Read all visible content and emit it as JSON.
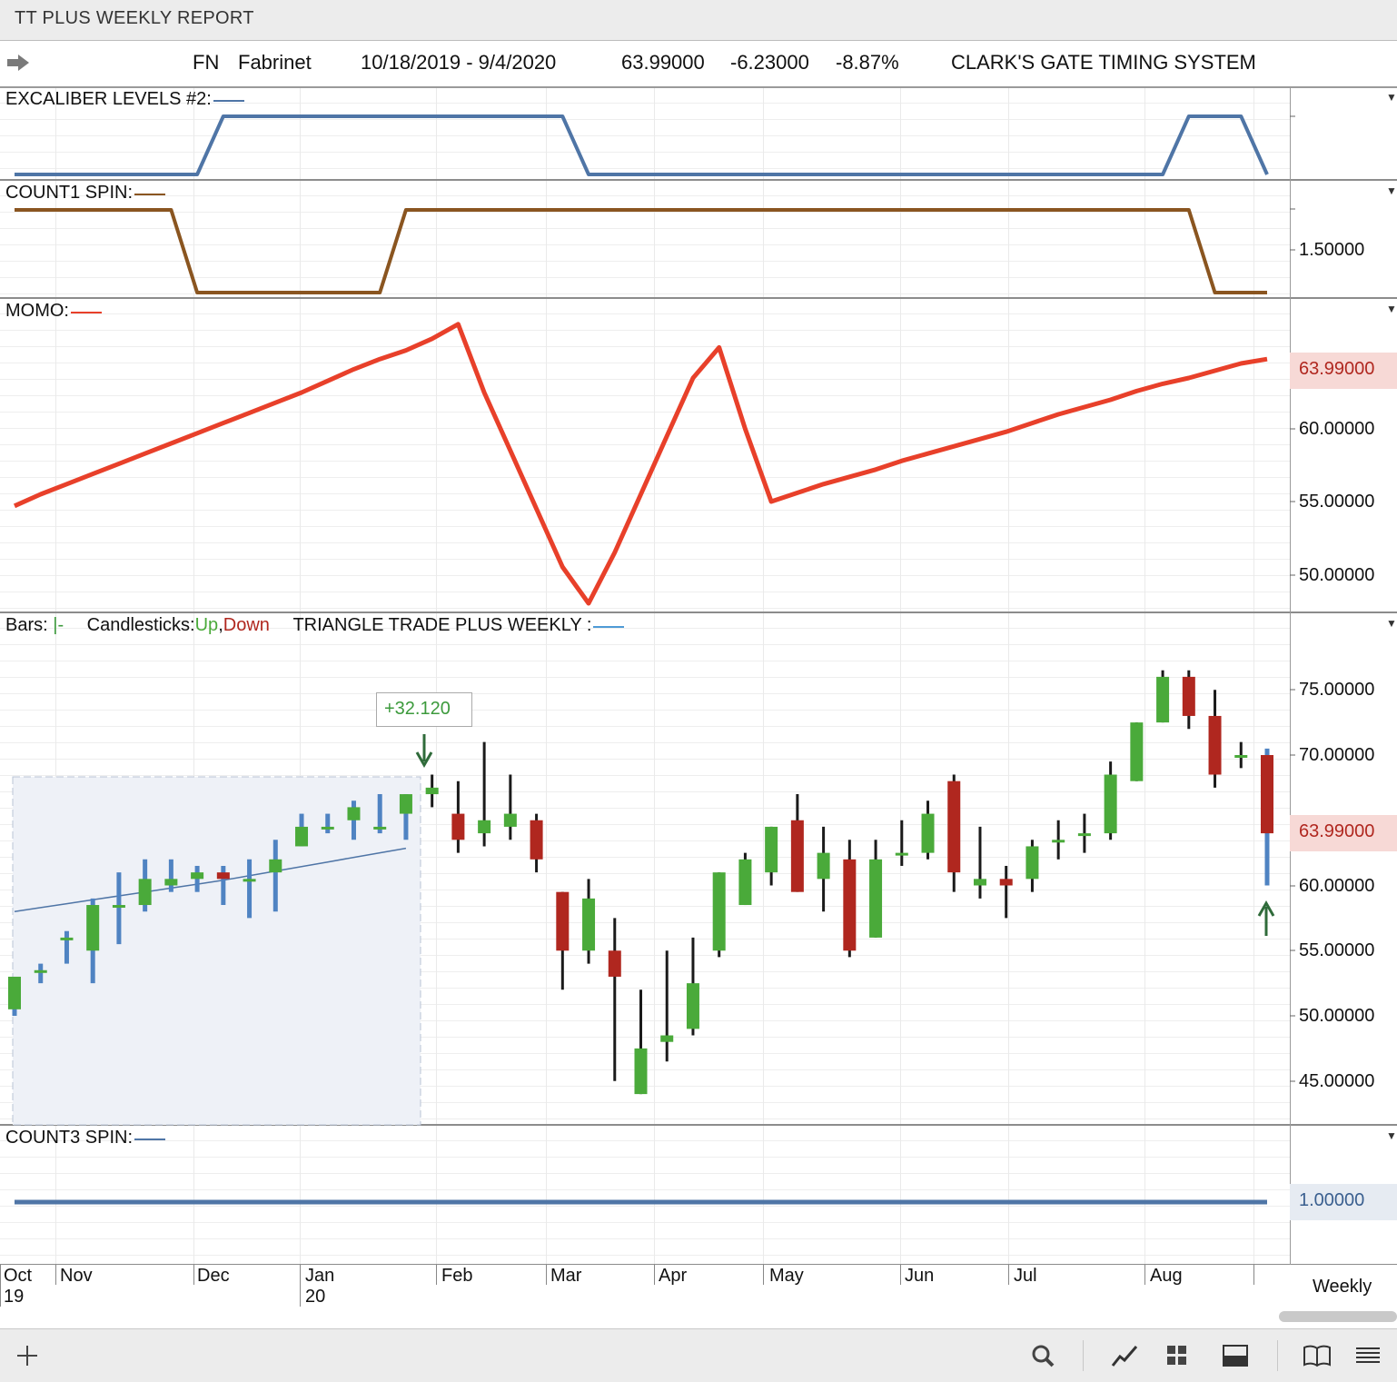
{
  "window": {
    "title": "TT PLUS WEEKLY REPORT"
  },
  "info": {
    "symbol": "FN",
    "name": "Fabrinet",
    "range": "10/18/2019 - 9/4/2020",
    "last": "63.99000",
    "change": "-6.23000",
    "pct": "-8.87%",
    "system": "CLARK'S GATE TIMING SYSTEM"
  },
  "panels": {
    "excaliber": {
      "label": "EXCALIBER LEVELS #2:",
      "color": "#4f75a6"
    },
    "count1": {
      "label": "COUNT1 SPIN:",
      "color": "#8a5520",
      "axis": "1.50000"
    },
    "momo": {
      "label": "MOMO:",
      "color": "#e8402a",
      "axis": [
        "63.99000",
        "60.00000",
        "55.00000",
        "50.00000"
      ]
    },
    "price": {
      "bars_label": "Bars:",
      "bars_sym": "|-",
      "candles_label": "Candlesticks:",
      "up": "Up",
      "comma": ",",
      "down": "Down",
      "study": "TRIANGLE TRADE PLUS WEEKLY :",
      "axis": [
        "75.00000",
        "70.00000",
        "63.99000",
        "60.00000",
        "55.00000",
        "50.00000",
        "45.00000"
      ],
      "annotation": "+32.120",
      "up_color": "#4aaa3a",
      "down_color": "#b0271f"
    },
    "count3": {
      "label": "COUNT3 SPIN:",
      "color": "#4f75a6",
      "axis": "1.00000"
    }
  },
  "dates": {
    "months": [
      "Oct",
      "Nov",
      "Dec",
      "Jan",
      "Feb",
      "Mar",
      "Apr",
      "May",
      "Jun",
      "Jul",
      "Aug"
    ],
    "years": [
      "19",
      "20"
    ],
    "interval": "Weekly"
  },
  "toolbar": {
    "icons": [
      "plus-icon",
      "search-icon",
      "line-chart-icon",
      "grid-icon",
      "panel-icon",
      "book-icon",
      "menu-icon"
    ]
  },
  "chart_data": [
    {
      "type": "line",
      "title": "EXCALIBER LEVELS #2",
      "series": [
        {
          "values": [
            0,
            0,
            0,
            0,
            0,
            0,
            0,
            0,
            1,
            1,
            1,
            1,
            1,
            1,
            1,
            1,
            1,
            1,
            1,
            1,
            1,
            1,
            0,
            0,
            0,
            0,
            0,
            0,
            0,
            0,
            0,
            0,
            0,
            0,
            0,
            0,
            0,
            0,
            0,
            0,
            0,
            0,
            0,
            0,
            0,
            1,
            1,
            1,
            0
          ]
        }
      ]
    },
    {
      "type": "line",
      "title": "COUNT1 SPIN",
      "series": [
        {
          "values": [
            2,
            2,
            2,
            2,
            2,
            2,
            2,
            1,
            1,
            1,
            1,
            1,
            1,
            1,
            1,
            2,
            2,
            2,
            2,
            2,
            2,
            2,
            2,
            2,
            2,
            2,
            2,
            2,
            2,
            2,
            2,
            2,
            2,
            2,
            2,
            2,
            2,
            2,
            2,
            2,
            2,
            2,
            2,
            2,
            2,
            2,
            1,
            1,
            1
          ]
        }
      ]
    },
    {
      "type": "line",
      "title": "MOMO",
      "series": [
        {
          "values": [
            54.7,
            55.5,
            56.2,
            56.9,
            57.6,
            58.3,
            59.0,
            59.7,
            60.4,
            61.1,
            61.8,
            62.5,
            63.3,
            64.1,
            64.8,
            65.4,
            66.2,
            67.2,
            62.5,
            58.5,
            54.5,
            50.5,
            48.0,
            51.5,
            55.5,
            59.5,
            63.5,
            65.6,
            60.0,
            55.0,
            55.6,
            56.2,
            56.7,
            57.2,
            57.8,
            58.3,
            58.8,
            59.3,
            59.8,
            60.4,
            61.0,
            61.5,
            62.0,
            62.6,
            63.1,
            63.5,
            64.0,
            64.5,
            64.8
          ]
        }
      ]
    },
    {
      "type": "bar",
      "title": "TRIANGLE TRADE PLUS WEEKLY",
      "series": [
        {
          "name": "Candlesticks",
          "ohlc": [
            [
              50.5,
              53.0,
              50.0,
              53.0
            ],
            [
              53.5,
              54.0,
              52.5,
              53.5
            ],
            [
              56.0,
              56.5,
              54.0,
              56.0
            ],
            [
              55.0,
              59.0,
              52.5,
              58.5
            ],
            [
              58.5,
              61.0,
              55.5,
              58.5
            ],
            [
              58.5,
              62.0,
              58.0,
              60.5
            ],
            [
              60.0,
              62.0,
              59.5,
              60.5
            ],
            [
              60.5,
              61.5,
              59.5,
              61.0
            ],
            [
              61.0,
              61.5,
              58.5,
              60.5
            ],
            [
              60.5,
              62.0,
              57.5,
              60.5
            ],
            [
              61.0,
              63.5,
              58.0,
              62.0
            ],
            [
              63.0,
              65.5,
              63.0,
              64.5
            ],
            [
              64.5,
              65.5,
              64.0,
              64.5
            ],
            [
              65.0,
              66.5,
              63.5,
              66.0
            ],
            [
              64.5,
              67.0,
              64.0,
              64.5
            ],
            [
              65.5,
              67.0,
              63.5,
              67.0
            ],
            [
              67.0,
              68.5,
              66.0,
              67.5
            ],
            [
              65.5,
              68.0,
              62.5,
              63.5
            ],
            [
              64.0,
              71.0,
              63.0,
              65.0
            ],
            [
              64.5,
              68.5,
              63.5,
              65.5
            ],
            [
              65.0,
              65.5,
              61.0,
              62.0
            ],
            [
              59.5,
              59.5,
              52.0,
              55.0
            ],
            [
              55.0,
              60.5,
              54.0,
              59.0
            ],
            [
              55.0,
              57.5,
              45.0,
              53.0
            ],
            [
              44.0,
              52.0,
              44.0,
              47.5
            ],
            [
              48.0,
              55.0,
              46.5,
              48.5
            ],
            [
              49.0,
              56.0,
              48.5,
              52.5
            ],
            [
              55.0,
              61.0,
              54.5,
              61.0
            ],
            [
              58.5,
              62.5,
              58.5,
              62.0
            ],
            [
              61.0,
              64.5,
              60.0,
              64.5
            ],
            [
              65.0,
              67.0,
              59.5,
              59.5
            ],
            [
              60.5,
              64.5,
              58.0,
              62.5
            ],
            [
              62.0,
              63.5,
              54.5,
              55.0
            ],
            [
              56.0,
              63.5,
              56.0,
              62.0
            ],
            [
              62.5,
              65.0,
              61.5,
              62.5
            ],
            [
              62.5,
              66.5,
              62.0,
              65.5
            ],
            [
              68.0,
              68.5,
              59.5,
              61.0
            ],
            [
              60.0,
              64.5,
              59.0,
              60.5
            ],
            [
              60.5,
              61.5,
              57.5,
              60.0
            ],
            [
              60.5,
              63.5,
              59.5,
              63.0
            ],
            [
              63.5,
              65.0,
              62.0,
              63.5
            ],
            [
              64.0,
              65.5,
              62.5,
              64.0
            ],
            [
              64.0,
              69.5,
              63.5,
              68.5
            ],
            [
              68.0,
              72.5,
              68.0,
              72.5
            ],
            [
              72.5,
              76.5,
              72.5,
              76.0
            ],
            [
              76.0,
              76.5,
              72.0,
              73.0
            ],
            [
              73.0,
              75.0,
              67.5,
              68.5
            ],
            [
              70.0,
              71.0,
              69.0,
              70.0
            ],
            [
              70.0,
              70.5,
              60.0,
              64.0
            ]
          ]
        }
      ]
    },
    {
      "type": "line",
      "title": "COUNT3 SPIN",
      "series": [
        {
          "values": [
            1,
            1
          ]
        }
      ]
    }
  ]
}
